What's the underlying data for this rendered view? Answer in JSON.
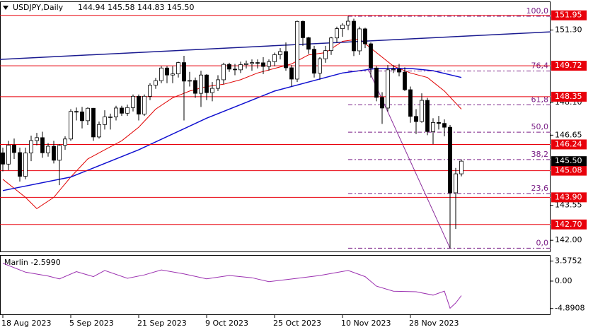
{
  "chart_data": [
    {
      "type": "candlestick",
      "title": "USDJPY,Daily",
      "quote": "144.94 145.58 144.83 145.50",
      "categories": [
        "18 Aug 2023",
        null,
        null,
        null,
        null,
        null,
        null,
        null,
        null,
        null,
        null,
        null,
        "5 Sep 2023",
        null,
        null,
        null,
        null,
        null,
        null,
        null,
        null,
        null,
        null,
        null,
        "21 Sep 2023",
        null,
        null,
        null,
        null,
        null,
        null,
        null,
        null,
        null,
        null,
        null,
        "9 Oct 2023",
        null,
        null,
        null,
        null,
        null,
        null,
        null,
        null,
        null,
        null,
        null,
        "25 Oct 2023",
        null,
        null,
        null,
        null,
        null,
        null,
        null,
        null,
        null,
        null,
        null,
        "10 Nov 2023",
        null,
        null,
        null,
        null,
        null,
        null,
        null,
        null,
        null,
        null,
        null,
        "28 Nov 2023",
        null,
        null,
        null,
        null,
        null,
        null,
        null,
        null,
        null
      ],
      "open": [
        145.87,
        145.37,
        146.21,
        145.88,
        144.83,
        145.86,
        146.41,
        146.54,
        145.87,
        146.16,
        145.54,
        146.2,
        146.48,
        147.7,
        147.68,
        147.29,
        147.84,
        146.57,
        147.12,
        147.46,
        147.46,
        147.85,
        147.62,
        147.87,
        148.37,
        147.58,
        148.37,
        148.86,
        149.06,
        149.62,
        149.31,
        149.36,
        149.86,
        149.04,
        149.07,
        148.5,
        149.31,
        148.53,
        148.72,
        149.1,
        149.78,
        149.57,
        149.54,
        149.77,
        149.82,
        149.86,
        149.85,
        149.69,
        149.9,
        150.21,
        150.35,
        149.63,
        149.13,
        151.68,
        150.96,
        150.45,
        149.39,
        150.03,
        150.39,
        150.95,
        151.36,
        151.52,
        151.69,
        150.38,
        151.35,
        150.69,
        149.62,
        148.32,
        147.85,
        149.54,
        149.57,
        149.44,
        148.66,
        147.48,
        147.25,
        148.19,
        146.81,
        147.21,
        147.17,
        147.0,
        144.1,
        144.94
      ],
      "high": [
        146.1,
        146.4,
        146.5,
        146.1,
        146.1,
        146.63,
        146.75,
        146.8,
        146.3,
        146.4,
        146.25,
        146.6,
        147.8,
        147.87,
        147.9,
        147.88,
        147.85,
        147.25,
        147.75,
        147.6,
        147.95,
        147.95,
        148.0,
        148.45,
        148.45,
        148.45,
        148.95,
        149.18,
        149.7,
        149.7,
        149.7,
        149.9,
        150.16,
        149.45,
        149.2,
        149.5,
        149.35,
        149.0,
        149.3,
        149.85,
        149.85,
        149.8,
        149.9,
        149.95,
        150.0,
        150.0,
        150.1,
        150.0,
        150.3,
        150.5,
        150.75,
        149.75,
        151.72,
        151.72,
        151.0,
        150.6,
        150.1,
        150.6,
        151.0,
        151.45,
        151.6,
        151.91,
        151.8,
        151.45,
        151.4,
        150.75,
        149.7,
        148.55,
        149.75,
        149.75,
        149.8,
        149.65,
        148.8,
        147.8,
        148.5,
        148.3,
        147.4,
        147.5,
        147.35,
        147.1,
        145.2,
        145.58
      ],
      "low": [
        145.05,
        145.1,
        145.6,
        144.6,
        144.7,
        145.5,
        146.2,
        145.65,
        145.7,
        145.4,
        144.44,
        146.0,
        146.4,
        147.3,
        146.95,
        147.1,
        146.4,
        146.5,
        146.9,
        146.9,
        147.3,
        147.5,
        147.5,
        147.7,
        147.3,
        147.5,
        148.2,
        148.7,
        148.95,
        148.95,
        148.95,
        149.2,
        147.3,
        148.8,
        148.3,
        147.9,
        148.2,
        148.15,
        148.6,
        148.9,
        149.45,
        149.3,
        149.4,
        149.6,
        149.5,
        149.6,
        149.35,
        149.5,
        149.7,
        150.0,
        149.5,
        148.8,
        149.0,
        150.6,
        150.25,
        149.2,
        149.1,
        149.85,
        150.2,
        150.75,
        151.0,
        151.3,
        150.15,
        150.2,
        150.5,
        149.2,
        148.15,
        147.15,
        147.7,
        149.4,
        149.25,
        148.6,
        147.2,
        146.7,
        147.2,
        146.65,
        146.25,
        146.9,
        146.6,
        141.65,
        142.5,
        144.83
      ],
      "close": [
        145.37,
        146.21,
        145.88,
        144.83,
        145.86,
        146.41,
        146.54,
        145.87,
        146.16,
        145.54,
        146.2,
        146.48,
        147.7,
        147.68,
        147.29,
        147.84,
        146.57,
        147.12,
        147.46,
        147.46,
        147.85,
        147.62,
        147.87,
        148.37,
        147.58,
        148.37,
        148.86,
        149.06,
        149.62,
        149.31,
        149.36,
        149.86,
        149.04,
        149.07,
        148.5,
        149.31,
        148.53,
        148.72,
        149.1,
        149.78,
        149.57,
        149.54,
        149.77,
        149.82,
        149.86,
        149.85,
        149.69,
        149.9,
        150.21,
        150.35,
        149.63,
        149.13,
        151.68,
        150.96,
        150.45,
        149.39,
        150.03,
        150.39,
        150.95,
        151.36,
        151.52,
        151.69,
        150.38,
        151.35,
        150.69,
        149.62,
        148.32,
        147.85,
        149.54,
        149.57,
        149.44,
        148.66,
        147.48,
        147.25,
        148.19,
        146.81,
        147.21,
        147.17,
        147.0,
        144.1,
        144.94,
        145.5
      ],
      "colors": {
        "up": "#ffffff",
        "down": "#000000",
        "wick": "#000000"
      },
      "ylim": [
        141.49,
        152.55
      ],
      "yticks": [
        {
          "value": 151.3,
          "label": "151.30"
        },
        {
          "value": 148.1,
          "label": "148.10"
        },
        146.65,
        143.55,
        {
          "value": 142,
          "label": "142.00"
        }
      ],
      "last_price": {
        "value": 145.5,
        "label": "145.50"
      },
      "levels": {
        "color": "#e8000b",
        "values": [
          151.95,
          149.72,
          148.35,
          146.24,
          145.08,
          {
            "value": 143.9,
            "label": "143.90"
          },
          {
            "value": 142.7,
            "label": "142.70"
          }
        ]
      },
      "fibonacci": {
        "color": "#7a1f86",
        "from": 61,
        "low": 141.65,
        "high": 151.91,
        "levels": [
          {
            "value": 100,
            "label": "100,0"
          },
          {
            "value": 76.4,
            "label": "76,4"
          },
          {
            "value": 61.8,
            "label": "61,8"
          },
          {
            "value": 50,
            "label": "50,0"
          },
          {
            "value": 38.2,
            "label": "38,2"
          },
          {
            "value": 23.6,
            "label": "23,6"
          },
          {
            "value": 0,
            "label": "0,0"
          }
        ]
      },
      "lines": [
        {
          "color": "#e00000",
          "width": 1,
          "x": [
            0,
            4,
            6,
            9,
            12,
            15,
            18,
            21,
            24,
            27,
            30,
            33,
            36,
            39,
            42,
            45,
            48,
            51,
            54,
            57,
            60,
            63,
            66,
            69,
            72,
            75,
            78,
            81
          ],
          "values": [
            144.7,
            143.9,
            143.4,
            143.9,
            144.8,
            145.6,
            146.0,
            146.4,
            147.0,
            147.8,
            148.3,
            148.6,
            148.8,
            148.9,
            149.1,
            149.4,
            149.6,
            149.8,
            150.2,
            150.3,
            150.8,
            150.9,
            150.3,
            149.7,
            149.4,
            149.2,
            148.6,
            147.8
          ]
        },
        {
          "color": "#1010d0",
          "width": 1.5,
          "x": [
            0,
            12,
            24,
            36,
            48,
            60,
            66,
            72,
            76,
            81
          ],
          "values": [
            144.2,
            144.8,
            146.0,
            147.4,
            148.6,
            149.4,
            149.6,
            149.6,
            149.5,
            149.2
          ]
        },
        {
          "color": "#1a1a90",
          "width": 1.5,
          "x": [
            -0.5,
            96.75
          ],
          "values": [
            150.0,
            151.22
          ]
        },
        {
          "color": "#8b2c9b",
          "width": 1,
          "x": [
            64.5,
            79
          ],
          "values": [
            149.6,
            141.65
          ]
        }
      ]
    },
    {
      "type": "line",
      "title": "Marlin -2.5990",
      "color": "#9b30b0",
      "x": [
        0,
        4,
        8,
        10,
        13,
        16,
        18,
        22,
        25,
        28,
        32,
        36,
        40,
        44,
        47,
        52,
        56,
        61,
        64,
        66,
        69,
        73,
        76,
        78,
        79,
        80,
        81
      ],
      "values": [
        3.2,
        1.6,
        0.9,
        0.4,
        1.7,
        0.8,
        1.9,
        0.5,
        1.1,
        2.0,
        1.3,
        0.4,
        1.0,
        0.6,
        -0.1,
        0.5,
        1.0,
        1.9,
        0.8,
        -0.9,
        -1.8,
        -1.9,
        -2.5,
        -1.8,
        -4.85,
        -3.9,
        -2.599
      ],
      "ylim": [
        -6.0,
        4.6
      ],
      "yticks": [
        3.5752,
        {
          "value": 0,
          "label": "0.00"
        },
        -4.8908
      ]
    }
  ]
}
